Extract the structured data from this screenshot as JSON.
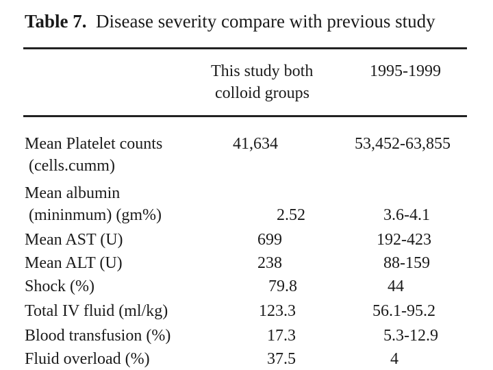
{
  "caption": {
    "number": "Table 7.",
    "title": "Disease severity compare with previous study"
  },
  "header": {
    "col1": [
      "This study both",
      "colloid groups"
    ],
    "col2": "1995-1999"
  },
  "rows": [
    {
      "label": [
        "Mean Platelet counts",
        " (cells.cumm)"
      ],
      "v1": "41,634",
      "v2": "53,452-63,855"
    },
    {
      "label": [
        "Mean albumin",
        " (mininmum) (gm%)"
      ],
      "v1": "2.52",
      "v2": "3.6-4.1"
    },
    {
      "label": [
        "Mean AST (U)"
      ],
      "v1": "699",
      "v2": "192-423"
    },
    {
      "label": [
        "Mean ALT (U)"
      ],
      "v1": "238",
      "v2": "88-159"
    },
    {
      "label": [
        "Shock (%)"
      ],
      "v1": "79.8",
      "v2": "44"
    },
    {
      "label": [
        "Total IV fluid (ml/kg)"
      ],
      "v1": "123.3",
      "v2": "56.1-95.2"
    },
    {
      "label": [
        "Blood transfusion (%)"
      ],
      "v1": "17.3",
      "v2": "5.3-12.9"
    },
    {
      "label": [
        "Fluid overload (%)"
      ],
      "v1": "37.5",
      "v2": "4"
    }
  ]
}
